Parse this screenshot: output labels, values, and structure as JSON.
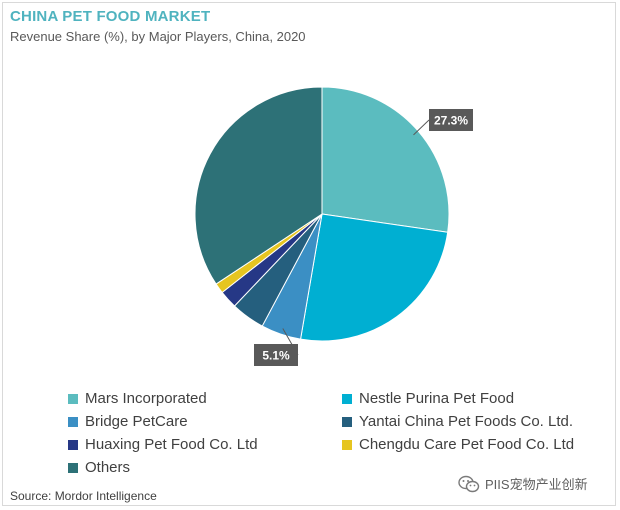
{
  "title": "CHINA PET FOOD MARKET",
  "subtitle": "Revenue Share (%), by Major Players, China, 2020",
  "source": "Source: Mordor Intelligence",
  "watermark": "PIIS宠物产业创新",
  "chart_data": {
    "type": "pie",
    "title": "CHINA PET FOOD MARKET",
    "subtitle": "Revenue Share (%), by Major Players, China, 2020",
    "slices": [
      {
        "name": "Mars Incorporated",
        "value": 27.3,
        "color": "#5bbcbf",
        "label": "27.3%"
      },
      {
        "name": "Nestle Purina Pet Food",
        "value": 25.4,
        "color": "#00afd2",
        "label": ""
      },
      {
        "name": "Bridge PetCare",
        "value": 5.1,
        "color": "#3b8fc4",
        "label": "5.1%"
      },
      {
        "name": "Yantai China Pet Foods Co. Ltd.",
        "value": 4.3,
        "color": "#255f7e",
        "label": ""
      },
      {
        "name": "Huaxing Pet Food Co. Ltd",
        "value": 2.3,
        "color": "#263886",
        "label": ""
      },
      {
        "name": "Chengdu Care Pet Food Co. Ltd",
        "value": 1.3,
        "color": "#e6c520",
        "label": ""
      },
      {
        "name": "Others",
        "value": 34.3,
        "color": "#2d7177",
        "label": ""
      }
    ],
    "legend_placement": "bottom"
  }
}
